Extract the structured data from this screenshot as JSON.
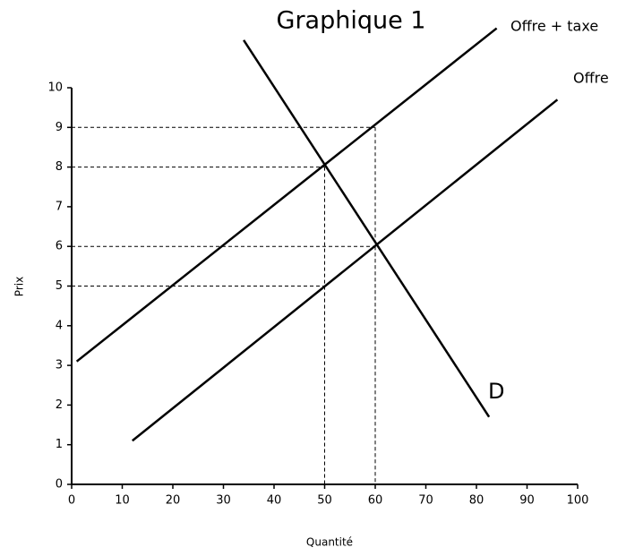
{
  "chart_data": {
    "type": "line",
    "title": "Graphique 1",
    "x_label": "Quantité",
    "y_label": "Prix",
    "series": [
      {
        "name": "Offre + taxe",
        "color": "#000000",
        "x": [
          1,
          84
        ],
        "values": [
          3.1,
          11.5
        ]
      },
      {
        "name": "Offre",
        "color": "#000000",
        "x": [
          12,
          96
        ],
        "values": [
          1.1,
          9.7
        ]
      },
      {
        "name": "D",
        "color": "#000000",
        "x": [
          34,
          82.5
        ],
        "values": [
          11.2,
          1.7
        ]
      }
    ],
    "guides": [
      {
        "x": 60,
        "y": 9
      },
      {
        "x": 50,
        "y": 8
      },
      {
        "x": 60,
        "y": 6
      },
      {
        "x": 50,
        "y": 5
      }
    ],
    "xlim": [
      0,
      100
    ],
    "xticks": [
      0,
      10,
      20,
      30,
      40,
      50,
      60,
      70,
      80,
      90,
      100
    ],
    "ylim": [
      0,
      10
    ],
    "yticks": [
      0,
      1,
      2,
      3,
      4,
      5,
      6,
      7,
      8,
      9,
      10
    ]
  }
}
